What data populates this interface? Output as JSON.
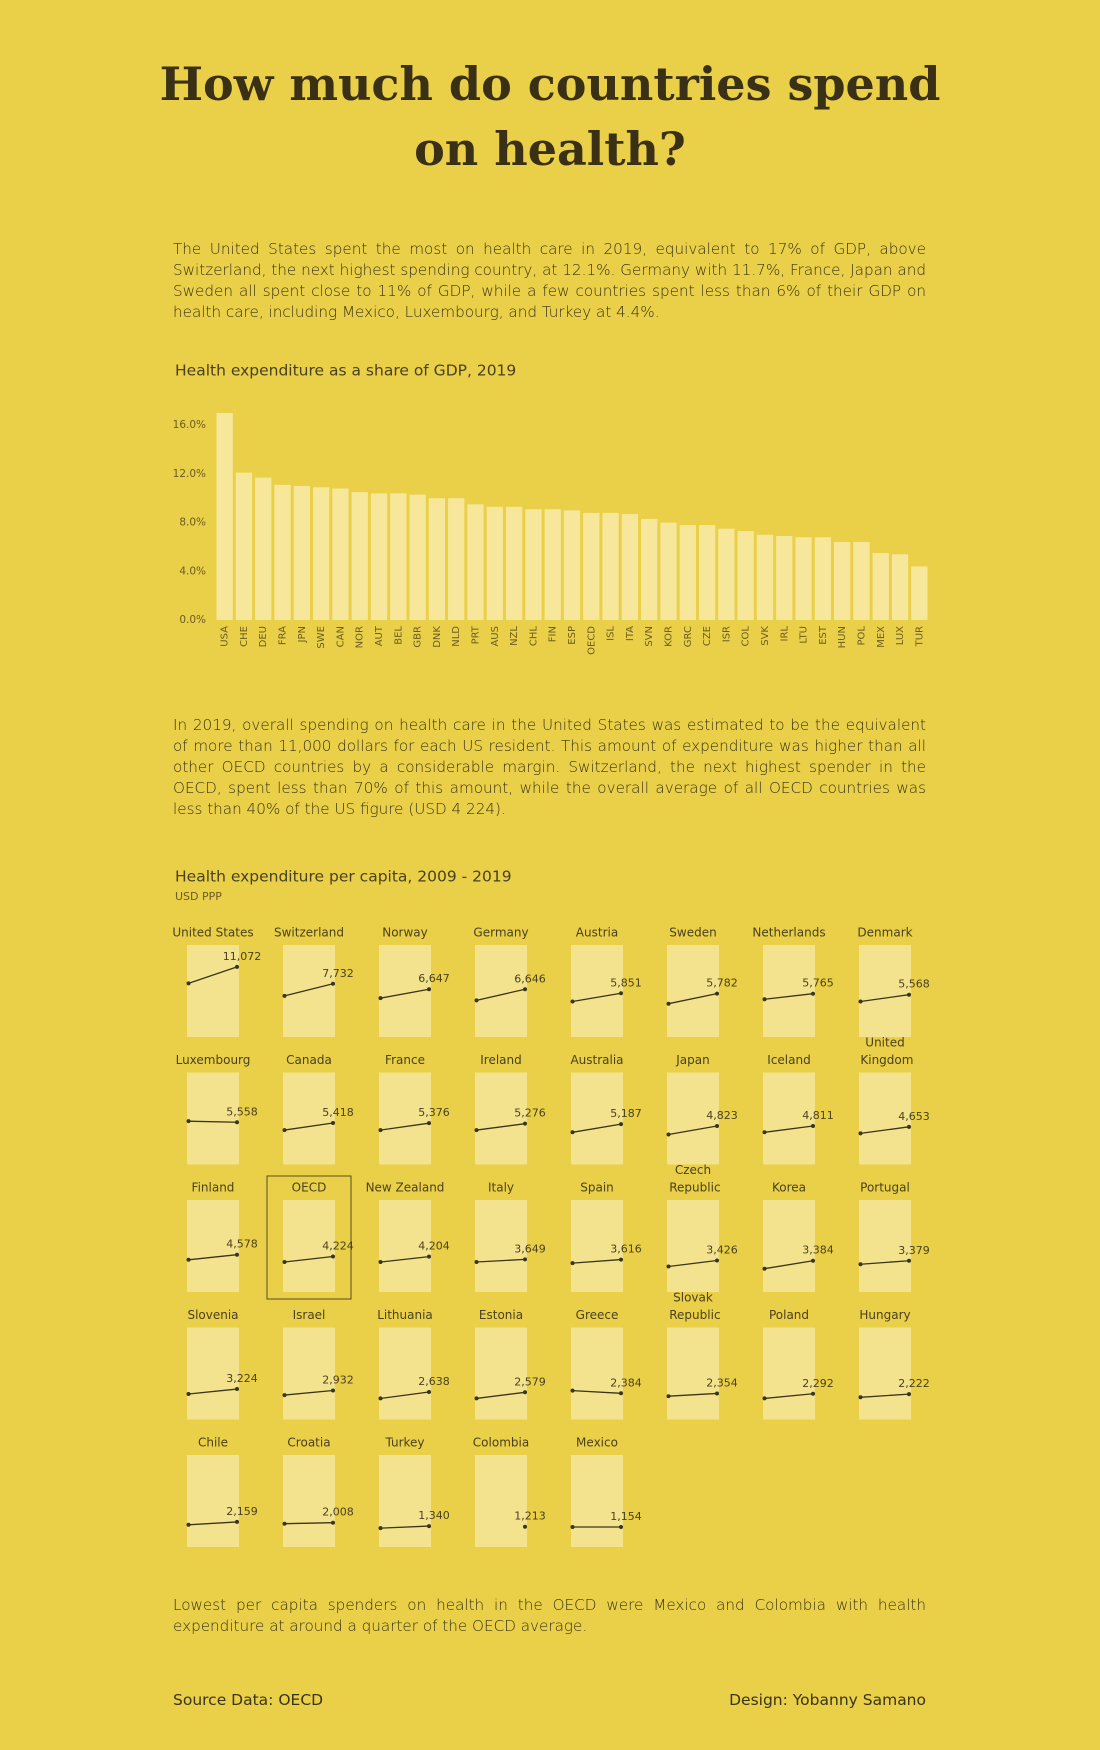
{
  "title": "How much do countries spend on health?",
  "intro": "The United States spent the most on health care in 2019, equivalent to 17% of GDP, above Switzerland, the next highest spending country, at 12.1%. Germany with 11.7%, France, Japan and Sweden all spent close to 11% of GDP, while a few countries spent less than 6% of their GDP on health care, including Mexico, Luxembourg, and Turkey at 4.4%.",
  "text2": "In 2019, overall spending on health care in the United States was estimated to be the equivalent of more than 11,000 dollars for each US resident. This amount of expenditure was higher than all other OECD countries by a considerable margin. Switzerland, the next highest spender in the OECD, spent less than 70% of this amount, while the overall average of all OECD countries was less than 40% of the US figure (USD 4 224).",
  "text3": "Lowest per capita spenders on health in the OECD were Mexico and Colombia with health expenditure at around a quarter of the OECD average.",
  "source": "Source Data: OECD",
  "design": "Design: Yobanny Samano",
  "chart_data": [
    {
      "type": "bar",
      "title": "Health expenditure as a share of GDP, 2019",
      "color": "#f7e79a",
      "categories": [
        "USA",
        "CHE",
        "DEU",
        "FRA",
        "JPN",
        "SWE",
        "CAN",
        "NOR",
        "AUT",
        "BEL",
        "GBR",
        "DNK",
        "NLD",
        "PRT",
        "AUS",
        "NZL",
        "CHL",
        "FIN",
        "ESP",
        "OECD",
        "ISL",
        "ITA",
        "SVN",
        "KOR",
        "GRC",
        "CZE",
        "ISR",
        "COL",
        "SVK",
        "IRL",
        "LTU",
        "EST",
        "HUN",
        "POL",
        "MEX",
        "LUX",
        "TUR"
      ],
      "values": [
        17.0,
        12.1,
        11.7,
        11.1,
        11.0,
        10.9,
        10.8,
        10.5,
        10.4,
        10.4,
        10.3,
        10.0,
        10.0,
        9.5,
        9.3,
        9.3,
        9.1,
        9.1,
        9.0,
        8.8,
        8.8,
        8.7,
        8.3,
        8.0,
        7.8,
        7.8,
        7.5,
        7.3,
        7.0,
        6.9,
        6.8,
        6.8,
        6.4,
        6.4,
        5.5,
        5.4,
        4.4
      ],
      "ylim": [
        0,
        17
      ],
      "yticks": [
        {
          "value": 0,
          "label": "0.0%"
        },
        {
          "value": 4,
          "label": "4.0%"
        },
        {
          "value": 8,
          "label": "8.0%"
        },
        {
          "value": 12,
          "label": "12.0%"
        },
        {
          "value": 16,
          "label": "16.0%"
        }
      ]
    },
    {
      "type": "small-multiples",
      "title": "Health expenditure per capita, 2009 - 2019",
      "subtitle": "USD PPP",
      "ylim": [
        -2800,
        15400
      ],
      "highlight": "OECD",
      "color": "#3a3418",
      "series": [
        {
          "name": "United States",
          "values": [
            7800,
            11072
          ],
          "value_labels": [
            null,
            "11,072"
          ]
        },
        {
          "name": "Switzerland",
          "values": [
            5330,
            7732
          ],
          "value_labels": [
            null,
            "7,732"
          ]
        },
        {
          "name": "Norway",
          "values": [
            4890,
            6647
          ],
          "value_labels": [
            null,
            "6,647"
          ]
        },
        {
          "name": "Germany",
          "values": [
            4450,
            6646
          ],
          "value_labels": [
            null,
            "6,646"
          ]
        },
        {
          "name": "Austria",
          "values": [
            4230,
            5851
          ],
          "value_labels": [
            null,
            "5,851"
          ]
        },
        {
          "name": "Sweden",
          "values": [
            3790,
            5782
          ],
          "value_labels": [
            null,
            "5,782"
          ]
        },
        {
          "name": "Netherlands",
          "values": [
            4670,
            5765
          ],
          "value_labels": [
            null,
            "5,765"
          ]
        },
        {
          "name": "Denmark",
          "values": [
            4230,
            5568
          ],
          "value_labels": [
            null,
            "5,568"
          ]
        },
        {
          "name": "Luxembourg",
          "values": [
            5770,
            5558
          ],
          "value_labels": [
            null,
            "5,558"
          ]
        },
        {
          "name": "Canada",
          "values": [
            4010,
            5418
          ],
          "value_labels": [
            null,
            "5,418"
          ]
        },
        {
          "name": "France",
          "values": [
            4010,
            5376
          ],
          "value_labels": [
            null,
            "5,376"
          ]
        },
        {
          "name": "Ireland",
          "values": [
            4010,
            5276
          ],
          "value_labels": [
            null,
            "5,276"
          ]
        },
        {
          "name": "Australia",
          "values": [
            3570,
            5187
          ],
          "value_labels": [
            null,
            "5,187"
          ]
        },
        {
          "name": "Japan",
          "values": [
            3130,
            4823
          ],
          "value_labels": [
            null,
            "4,823"
          ]
        },
        {
          "name": "Iceland",
          "values": [
            3570,
            4811
          ],
          "value_labels": [
            null,
            "4,811"
          ]
        },
        {
          "name": "United Kingdom",
          "values": [
            3350,
            4653
          ],
          "value_labels": [
            null,
            "4,653"
          ]
        },
        {
          "name": "Finland",
          "values": [
            3570,
            4578
          ],
          "value_labels": [
            null,
            "4,578"
          ]
        },
        {
          "name": "OECD",
          "values": [
            3130,
            4224
          ],
          "value_labels": [
            null,
            "4,224"
          ]
        },
        {
          "name": "New Zealand",
          "values": [
            3130,
            4204
          ],
          "value_labels": [
            null,
            "4,204"
          ]
        },
        {
          "name": "Italy",
          "values": [
            3130,
            3649
          ],
          "value_labels": [
            null,
            "3,649"
          ]
        },
        {
          "name": "Spain",
          "values": [
            2910,
            3616
          ],
          "value_labels": [
            null,
            "3,616"
          ]
        },
        {
          "name": "Czech Republic",
          "values": [
            2250,
            3426
          ],
          "value_labels": [
            null,
            "3,426"
          ]
        },
        {
          "name": "Korea",
          "values": [
            1810,
            3384
          ],
          "value_labels": [
            null,
            "3,384"
          ]
        },
        {
          "name": "Portugal",
          "values": [
            2690,
            3379
          ],
          "value_labels": [
            null,
            "3,379"
          ]
        },
        {
          "name": "Slovenia",
          "values": [
            2250,
            3224
          ],
          "value_labels": [
            null,
            "3,224"
          ]
        },
        {
          "name": "Israel",
          "values": [
            2030,
            2932
          ],
          "value_labels": [
            null,
            "2,932"
          ]
        },
        {
          "name": "Lithuania",
          "values": [
            1370,
            2638
          ],
          "value_labels": [
            null,
            "2,638"
          ]
        },
        {
          "name": "Estonia",
          "values": [
            1370,
            2579
          ],
          "value_labels": [
            null,
            "2,579"
          ]
        },
        {
          "name": "Greece",
          "values": [
            2910,
            2384
          ],
          "value_labels": [
            null,
            "2,384"
          ]
        },
        {
          "name": "Slovak Republic",
          "values": [
            1810,
            2354
          ],
          "value_labels": [
            null,
            "2,354"
          ]
        },
        {
          "name": "Poland",
          "values": [
            1370,
            2292
          ],
          "value_labels": [
            null,
            "2,292"
          ]
        },
        {
          "name": "Hungary",
          "values": [
            1590,
            2222
          ],
          "value_labels": [
            null,
            "2,222"
          ]
        },
        {
          "name": "Chile",
          "values": [
            1590,
            2159
          ],
          "value_labels": [
            null,
            "2,159"
          ]
        },
        {
          "name": "Croatia",
          "values": [
            1810,
            2008
          ],
          "value_labels": [
            null,
            "2,008"
          ]
        },
        {
          "name": "Turkey",
          "values": [
            930,
            1340
          ],
          "value_labels": [
            null,
            "1,340"
          ]
        },
        {
          "name": "Colombia",
          "values": [
            null,
            1213
          ],
          "value_labels": [
            null,
            "1,213"
          ]
        },
        {
          "name": "Mexico",
          "values": [
            1150,
            1154
          ],
          "value_labels": [
            null,
            "1,154"
          ]
        }
      ]
    }
  ]
}
